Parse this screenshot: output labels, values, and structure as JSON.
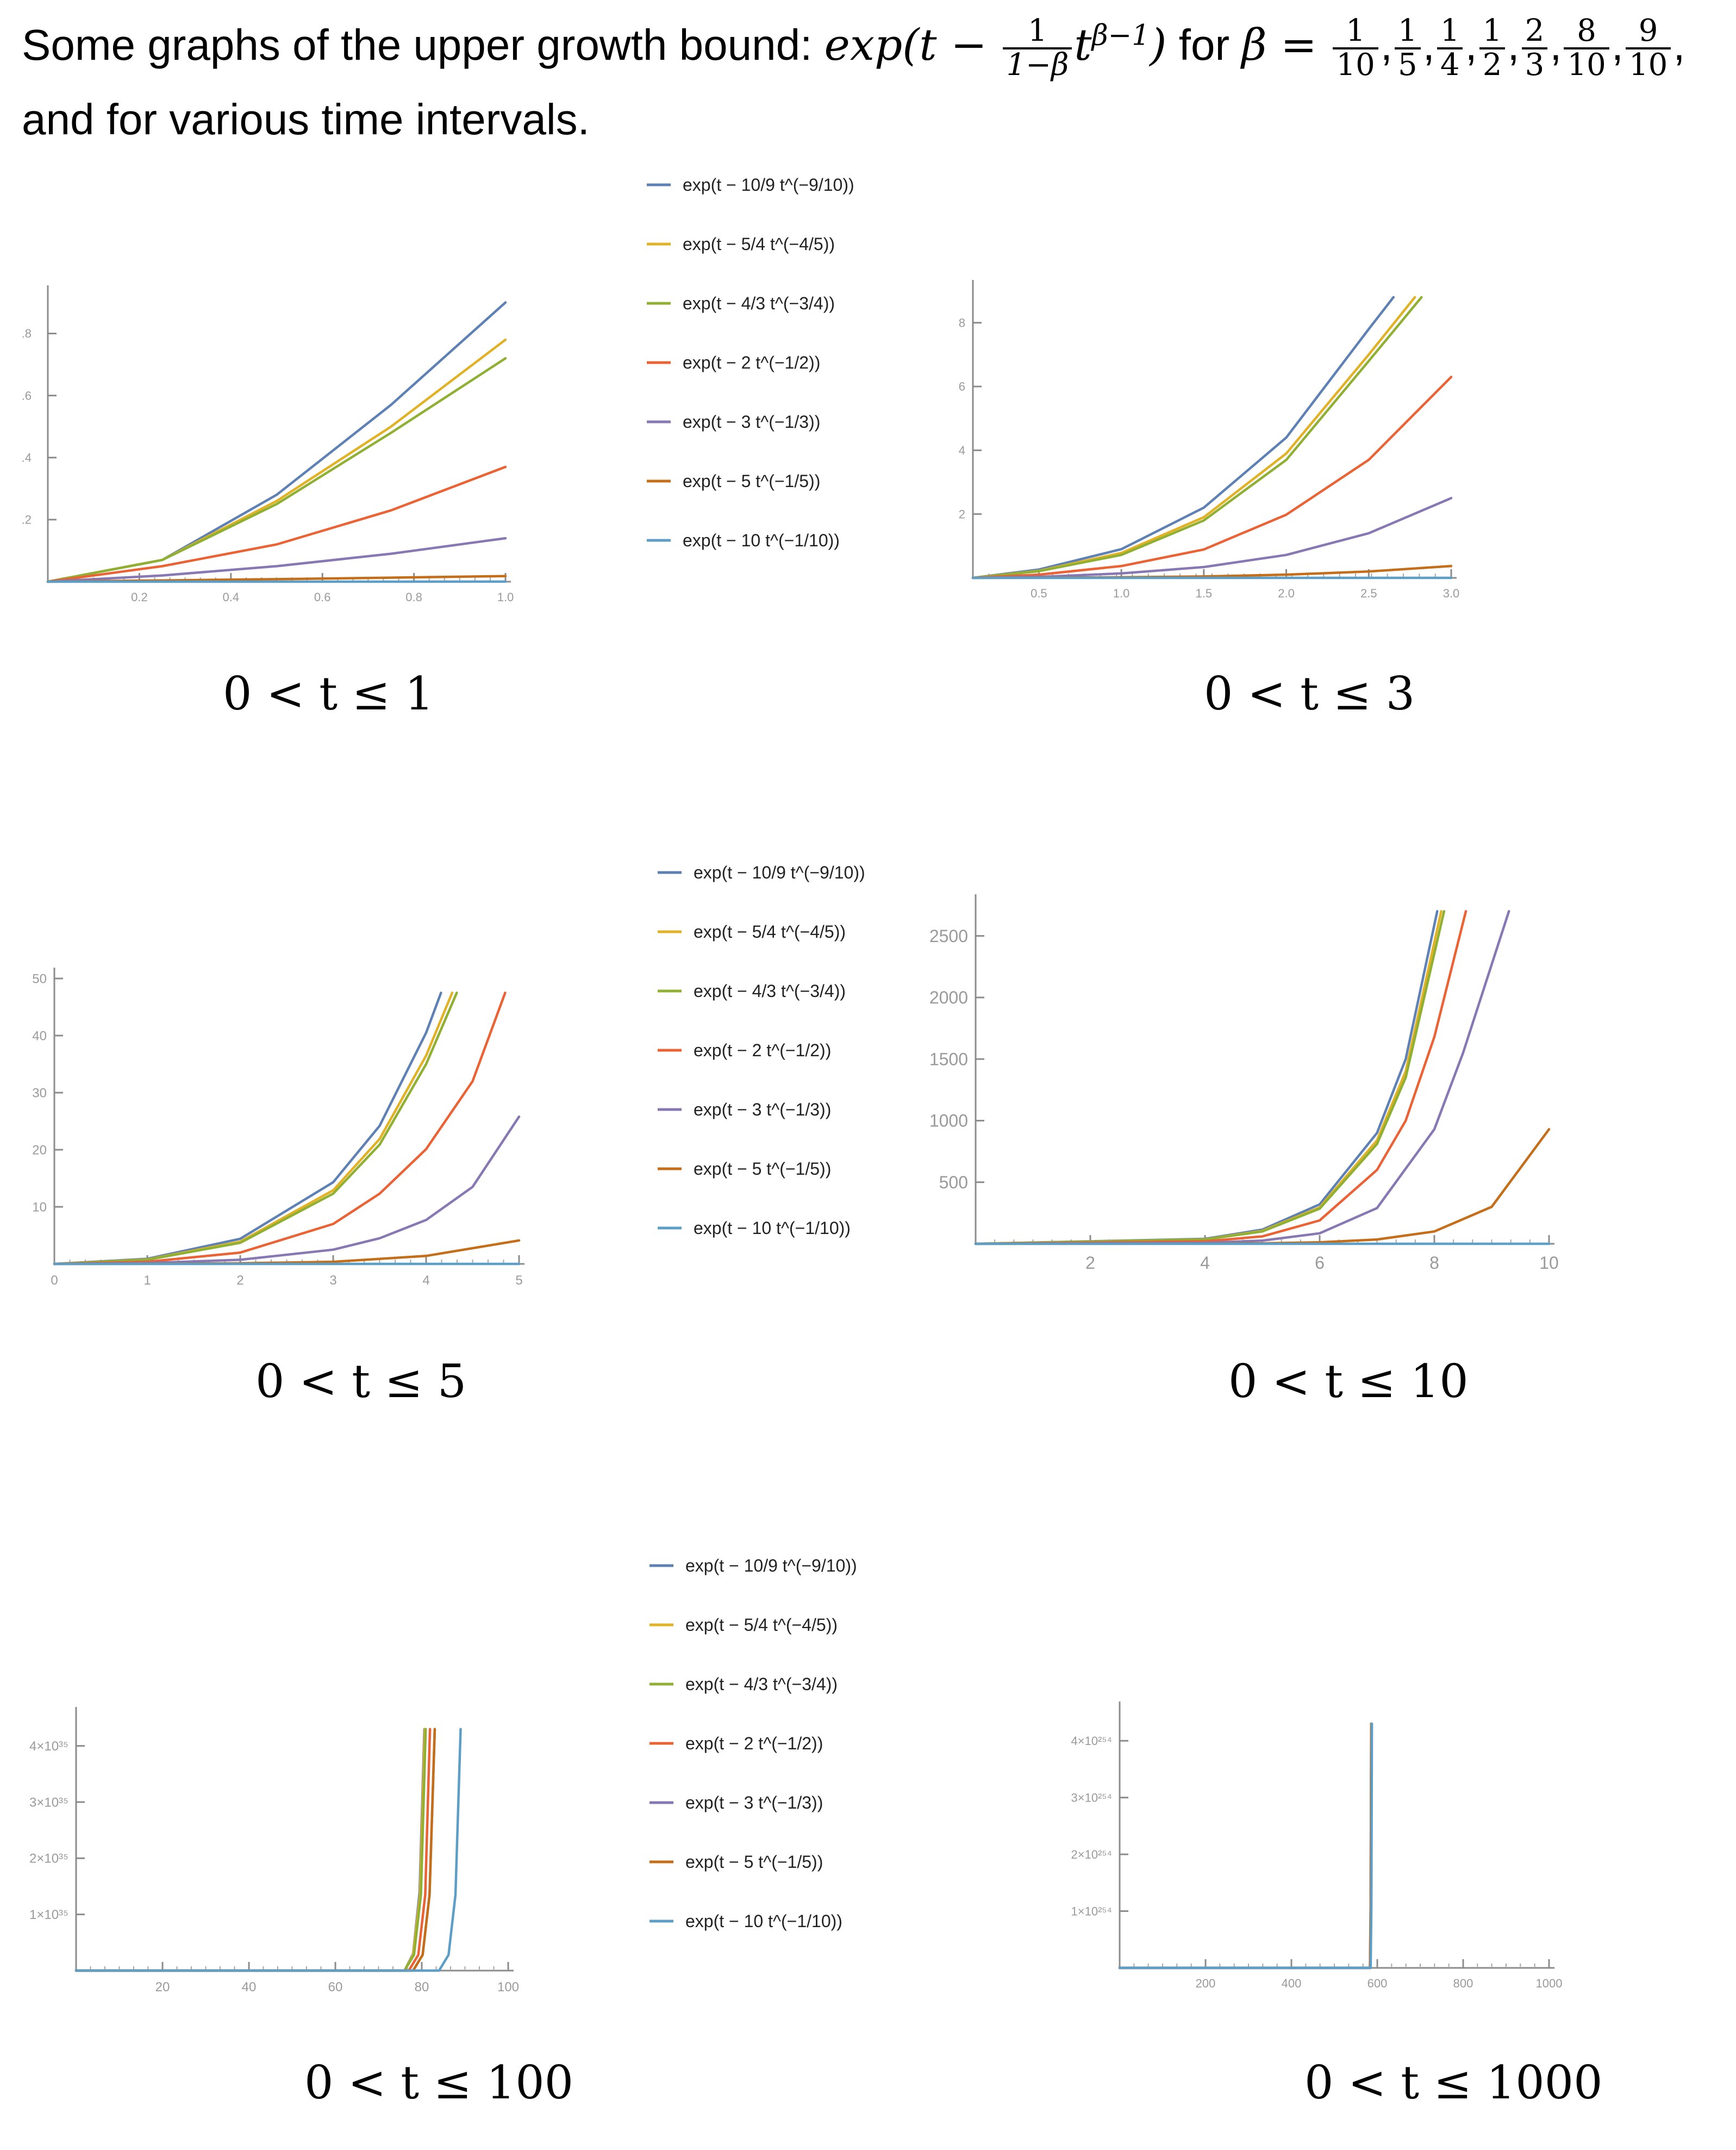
{
  "header": {
    "line1_prefix": "Some graphs of the upper growth bound: ",
    "exp_word": "exp",
    "paren_open": "(",
    "t_var": "t",
    "minus": " − ",
    "coef_num": "1",
    "coef_den": "1−β",
    "power_base": "t",
    "power_exp": "β−1",
    "paren_close": ")",
    "for_text": " for ",
    "beta_symbol": "β",
    "equals": " = ",
    "betas": [
      {
        "num": "1",
        "den": "10"
      },
      {
        "num": "1",
        "den": "5"
      },
      {
        "num": "1",
        "den": "4"
      },
      {
        "num": "1",
        "den": "2"
      },
      {
        "num": "2",
        "den": "3"
      },
      {
        "num": "8",
        "den": "10"
      },
      {
        "num": "9",
        "den": "10"
      }
    ],
    "line2": "and for various time intervals."
  },
  "legend_labels": [
    "exp(t − 10/9 t^(−9/10))",
    "exp(t − 5/4 t^(−4/5))",
    "exp(t − 4/3 t^(−3/4))",
    "exp(t − 2 t^(−1/2))",
    "exp(t − 3 t^(−1/3))",
    "exp(t − 5 t^(−1/5))",
    "exp(t − 10 t^(−1/10))"
  ],
  "colors": [
    "#5e81b5",
    "#e1b226",
    "#8fb032",
    "#eb6235",
    "#8778b3",
    "#c56e1a",
    "#5d9ec7"
  ],
  "chart_data": [
    {
      "type": "line",
      "caption": "0 < t ≤ 1",
      "xlim": [
        0,
        1
      ],
      "ylim": [
        0,
        0.92
      ],
      "xticks": [
        0.2,
        0.4,
        0.6,
        0.8,
        1.0
      ],
      "xtick_labels": [
        "0.2",
        "0.4",
        "0.6",
        "0.8",
        "1.0"
      ],
      "yticks": [
        0.2,
        0.4,
        0.6,
        0.8
      ],
      "ytick_labels": [
        ".2",
        ".4",
        ".6",
        ".8"
      ],
      "series": [
        {
          "name": "exp(t − 10/9 t^(−9/10))",
          "x": [
            0,
            0.25,
            0.5,
            0.75,
            1.0
          ],
          "y": [
            0.0,
            0.07,
            0.28,
            0.57,
            0.9
          ]
        },
        {
          "name": "exp(t − 5/4 t^(−4/5))",
          "x": [
            0,
            0.25,
            0.5,
            0.75,
            1.0
          ],
          "y": [
            0.0,
            0.07,
            0.26,
            0.5,
            0.78
          ]
        },
        {
          "name": "exp(t − 4/3 t^(−3/4))",
          "x": [
            0,
            0.25,
            0.5,
            0.75,
            1.0
          ],
          "y": [
            0.0,
            0.07,
            0.25,
            0.48,
            0.72
          ]
        },
        {
          "name": "exp(t − 2 t^(−1/2))",
          "x": [
            0,
            0.25,
            0.5,
            0.75,
            1.0
          ],
          "y": [
            0.0,
            0.05,
            0.12,
            0.23,
            0.37
          ]
        },
        {
          "name": "exp(t − 3 t^(−1/3))",
          "x": [
            0,
            0.25,
            0.5,
            0.75,
            1.0
          ],
          "y": [
            0.0,
            0.02,
            0.05,
            0.09,
            0.14
          ]
        },
        {
          "name": "exp(t − 5 t^(−1/5))",
          "x": [
            0,
            0.25,
            0.5,
            0.75,
            1.0
          ],
          "y": [
            0.0,
            0.004,
            0.008,
            0.013,
            0.018
          ]
        },
        {
          "name": "exp(t − 10 t^(−1/10))",
          "x": [
            0,
            0.5,
            1.0
          ],
          "y": [
            0.0,
            0.0,
            0.0001
          ]
        }
      ]
    },
    {
      "type": "line",
      "caption": "0 < t ≤ 3",
      "xlim": [
        0.1,
        3.0
      ],
      "ylim": [
        0,
        9
      ],
      "xticks": [
        0.5,
        1.0,
        1.5,
        2.0,
        2.5,
        3.0
      ],
      "xtick_labels": [
        "0.5",
        "1.0",
        "1.5",
        "2.0",
        "2.5",
        "3.0"
      ],
      "yticks": [
        2,
        4,
        6,
        8
      ],
      "ytick_labels": [
        "2",
        "4",
        "6",
        "8"
      ],
      "series": [
        {
          "name": "exp(t − 10/9 t^(−9/10))",
          "x": [
            0.1,
            0.5,
            1.0,
            1.5,
            2.0,
            2.5,
            2.65
          ],
          "y": [
            0.0,
            0.26,
            0.9,
            2.2,
            4.4,
            7.8,
            8.8
          ]
        },
        {
          "name": "exp(t − 5/4 t^(−4/5))",
          "x": [
            0.1,
            0.5,
            1.0,
            1.5,
            2.0,
            2.5,
            2.78
          ],
          "y": [
            0.0,
            0.22,
            0.78,
            1.9,
            3.9,
            7.0,
            8.8
          ]
        },
        {
          "name": "exp(t − 4/3 t^(−3/4))",
          "x": [
            0.1,
            0.5,
            1.0,
            1.5,
            2.0,
            2.5,
            2.82
          ],
          "y": [
            0.0,
            0.21,
            0.72,
            1.8,
            3.7,
            6.8,
            8.8
          ]
        },
        {
          "name": "exp(t − 2 t^(−1/2))",
          "x": [
            0.1,
            0.5,
            1.0,
            1.5,
            2.0,
            2.5,
            3.0
          ],
          "y": [
            0.0,
            0.1,
            0.37,
            0.89,
            1.98,
            3.7,
            6.3
          ]
        },
        {
          "name": "exp(t − 3 t^(−1/3))",
          "x": [
            0.1,
            0.5,
            1.0,
            1.5,
            2.0,
            2.5,
            3.0
          ],
          "y": [
            0.0,
            0.03,
            0.14,
            0.34,
            0.72,
            1.4,
            2.5
          ]
        },
        {
          "name": "exp(t − 5 t^(−1/5))",
          "x": [
            0.1,
            0.5,
            1.0,
            1.5,
            2.0,
            2.5,
            3.0
          ],
          "y": [
            0.0,
            0.004,
            0.018,
            0.045,
            0.1,
            0.2,
            0.37
          ]
        },
        {
          "name": "exp(t − 10 t^(−1/10))",
          "x": [
            0.1,
            1.0,
            2.0,
            3.0
          ],
          "y": [
            0.0,
            0.0,
            0.0,
            0.0003
          ]
        }
      ]
    },
    {
      "type": "line",
      "caption": "0 < t ≤ 5",
      "xlim": [
        0,
        5
      ],
      "ylim": [
        0,
        50
      ],
      "xticks": [
        0,
        1,
        2,
        3,
        4,
        5
      ],
      "xtick_labels": [
        "0",
        "1",
        "2",
        "3",
        "4",
        "5"
      ],
      "yticks": [
        10,
        20,
        30,
        40,
        50
      ],
      "ytick_labels": [
        "10",
        "20",
        "30",
        "40",
        "50"
      ],
      "series": [
        {
          "name": "exp(t − 10/9 t^(−9/10))",
          "x": [
            0,
            1,
            2,
            3,
            3.5,
            4.0,
            4.16
          ],
          "y": [
            0.0,
            0.9,
            4.4,
            14.3,
            24.2,
            40.5,
            47.5
          ]
        },
        {
          "name": "exp(t − 5/4 t^(−4/5))",
          "x": [
            0,
            1,
            2,
            3,
            3.5,
            4.0,
            4.28
          ],
          "y": [
            0.0,
            0.78,
            3.9,
            12.9,
            21.9,
            36.5,
            47.5
          ]
        },
        {
          "name": "exp(t − 4/3 t^(−3/4))",
          "x": [
            0,
            1,
            2,
            3,
            3.5,
            4.0,
            4.33
          ],
          "y": [
            0.0,
            0.72,
            3.7,
            12.3,
            20.9,
            35.0,
            47.5
          ]
        },
        {
          "name": "exp(t − 2 t^(−1/2))",
          "x": [
            0,
            1,
            2,
            3,
            3.5,
            4.0,
            4.5,
            4.85
          ],
          "y": [
            0.0,
            0.37,
            1.98,
            7.0,
            12.3,
            20.1,
            32.0,
            47.5
          ]
        },
        {
          "name": "exp(t − 3 t^(−1/3))",
          "x": [
            0,
            1,
            2,
            3,
            3.5,
            4.0,
            4.5,
            5.0
          ],
          "y": [
            0.0,
            0.14,
            0.72,
            2.5,
            4.5,
            7.7,
            13.5,
            25.8
          ]
        },
        {
          "name": "exp(t − 5 t^(−1/5))",
          "x": [
            0,
            1,
            2,
            3,
            4,
            5
          ],
          "y": [
            0.0,
            0.018,
            0.1,
            0.37,
            1.4,
            4.1
          ]
        },
        {
          "name": "exp(t − 10 t^(−1/10))",
          "x": [
            0,
            2,
            4,
            5
          ],
          "y": [
            0.0,
            0.0,
            0.001,
            0.003
          ]
        }
      ]
    },
    {
      "type": "line",
      "caption": "0 < t ≤ 10",
      "xlim": [
        0,
        10
      ],
      "ylim": [
        0,
        2750
      ],
      "xticks": [
        2,
        4,
        6,
        8,
        10
      ],
      "xtick_labels": [
        "2",
        "4",
        "6",
        "8",
        "10"
      ],
      "yticks": [
        500,
        1000,
        1500,
        2000,
        2500
      ],
      "ytick_labels": [
        "500",
        "1000",
        "1500",
        "2000",
        "2500"
      ],
      "series": [
        {
          "name": "exp(t − 10/9 t^(−9/10))",
          "x": [
            0,
            4,
            5,
            6,
            7,
            7.5,
            8.05
          ],
          "y": [
            0,
            40,
            115,
            320,
            900,
            1500,
            2700
          ]
        },
        {
          "name": "exp(t − 5/4 t^(−4/5))",
          "x": [
            0,
            4,
            5,
            6,
            7,
            7.5,
            8.12
          ],
          "y": [
            0,
            36,
            105,
            295,
            840,
            1400,
            2700
          ]
        },
        {
          "name": "exp(t − 4/3 t^(−3/4))",
          "x": [
            0,
            4,
            5,
            6,
            7,
            7.5,
            8.17
          ],
          "y": [
            0,
            35,
            100,
            285,
            810,
            1350,
            2700
          ]
        },
        {
          "name": "exp(t − 2 t^(−1/2))",
          "x": [
            0,
            4,
            5,
            6,
            7,
            7.5,
            8.0,
            8.55
          ],
          "y": [
            0,
            20,
            60,
            190,
            600,
            1000,
            1680,
            2700
          ]
        },
        {
          "name": "exp(t − 3 t^(−1/3))",
          "x": [
            0,
            4,
            5,
            6,
            7,
            8,
            8.5,
            9.3
          ],
          "y": [
            0,
            8,
            26,
            85,
            290,
            930,
            1550,
            2700
          ]
        },
        {
          "name": "exp(t − 5 t^(−1/5))",
          "x": [
            0,
            4,
            5,
            6,
            7,
            8,
            9,
            10
          ],
          "y": [
            0,
            1.4,
            4.1,
            12,
            35,
            100,
            300,
            930
          ]
        },
        {
          "name": "exp(t − 10 t^(−1/10))",
          "x": [
            0,
            4,
            6,
            8,
            10
          ],
          "y": [
            0,
            0.0,
            0.01,
            0.05,
            0.2
          ]
        }
      ]
    },
    {
      "type": "line",
      "caption": "0 < t ≤ 100",
      "xlim": [
        0,
        100
      ],
      "ylim": [
        0,
        4.5e+35
      ],
      "xticks": [
        20,
        40,
        60,
        80,
        100
      ],
      "xtick_labels": [
        "20",
        "40",
        "60",
        "80",
        "100"
      ],
      "yticks": [
        1e+35,
        2e+35,
        3e+35,
        4e+35
      ],
      "ytick_labels": [
        "1×10³⁵",
        "2×10³⁵",
        "3×10³⁵",
        "4×10³⁵"
      ],
      "series": [
        {
          "name": "exp(t − 10/9 t^(−9/10))",
          "x": [
            0,
            76,
            78,
            79.5,
            80.6
          ],
          "y": [
            0,
            0,
            3e+34,
            1.4e+35,
            4.3e+35
          ]
        },
        {
          "name": "exp(t − 5/4 t^(−4/5))",
          "x": [
            0,
            76,
            78,
            79.6,
            80.7
          ],
          "y": [
            0,
            0,
            2.8e+34,
            1.35e+35,
            4.3e+35
          ]
        },
        {
          "name": "exp(t − 4/3 t^(−3/4))",
          "x": [
            0,
            76,
            78.2,
            79.8,
            80.9
          ],
          "y": [
            0,
            0,
            2.8e+34,
            1.35e+35,
            4.3e+35
          ]
        },
        {
          "name": "exp(t − 2 t^(−1/2))",
          "x": [
            0,
            77,
            79.2,
            80.8,
            81.9
          ],
          "y": [
            0,
            0,
            2.8e+34,
            1.35e+35,
            4.3e+35
          ]
        },
        {
          "name": "exp(t − 3 t^(−1/3))",
          "x": [
            0,
            78,
            80.2,
            81.8,
            83.0
          ],
          "y": [
            0,
            0,
            2.8e+34,
            1.35e+35,
            4.3e+35
          ]
        },
        {
          "name": "exp(t − 5 t^(−1/5))",
          "x": [
            0,
            78,
            80.2,
            81.8,
            83.0
          ],
          "y": [
            0,
            0,
            2.8e+34,
            1.35e+35,
            4.3e+35
          ]
        },
        {
          "name": "exp(t − 10 t^(−1/10))",
          "x": [
            0,
            84,
            86.2,
            87.8,
            89.0
          ],
          "y": [
            0,
            0,
            2.8e+34,
            1.35e+35,
            4.3e+35
          ]
        }
      ]
    },
    {
      "type": "line",
      "caption": "0 < t ≤ 1000",
      "xlim": [
        0,
        1000
      ],
      "ylim": [
        0,
        4.5e+254
      ],
      "xticks": [
        200,
        400,
        600,
        800,
        1000
      ],
      "xtick_labels": [
        "200",
        "400",
        "600",
        "800",
        "1000"
      ],
      "yticks": [
        1e+254,
        2e+254,
        3e+254,
        4e+254
      ],
      "ytick_labels": [
        "1×10²⁵⁴",
        "2×10²⁵⁴",
        "3×10²⁵⁴",
        "4×10²⁵⁴"
      ],
      "series": [
        {
          "name": "exp(t − 10/9 t^(−9/10))",
          "x": [
            0,
            583,
            584.5,
            585.8
          ],
          "y": [
            0,
            0,
            1.1e+254,
            4.3e+254
          ]
        },
        {
          "name": "exp(t − 5/4 t^(−4/5))",
          "x": [
            0,
            583,
            584.6,
            585.9
          ],
          "y": [
            0,
            0,
            1.1e+254,
            4.3e+254
          ]
        },
        {
          "name": "exp(t − 4/3 t^(−3/4))",
          "x": [
            0,
            583,
            584.7,
            586.0
          ],
          "y": [
            0,
            0,
            1.1e+254,
            4.3e+254
          ]
        },
        {
          "name": "exp(t − 2 t^(−1/2))",
          "x": [
            0,
            583.2,
            584.8,
            586.1
          ],
          "y": [
            0,
            0,
            1.1e+254,
            4.3e+254
          ]
        },
        {
          "name": "exp(t − 3 t^(−1/3))",
          "x": [
            0,
            583.4,
            585.0,
            586.3
          ],
          "y": [
            0,
            0,
            1.1e+254,
            4.3e+254
          ]
        },
        {
          "name": "exp(t − 5 t^(−1/5))",
          "x": [
            0,
            583.8,
            585.4,
            586.7
          ],
          "y": [
            0,
            0,
            1.1e+254,
            4.3e+254
          ]
        },
        {
          "name": "exp(t − 10 t^(−1/10))",
          "x": [
            0,
            584.6,
            586.2,
            587.5
          ],
          "y": [
            0,
            0,
            1.1e+254,
            4.3e+254
          ]
        }
      ]
    }
  ]
}
